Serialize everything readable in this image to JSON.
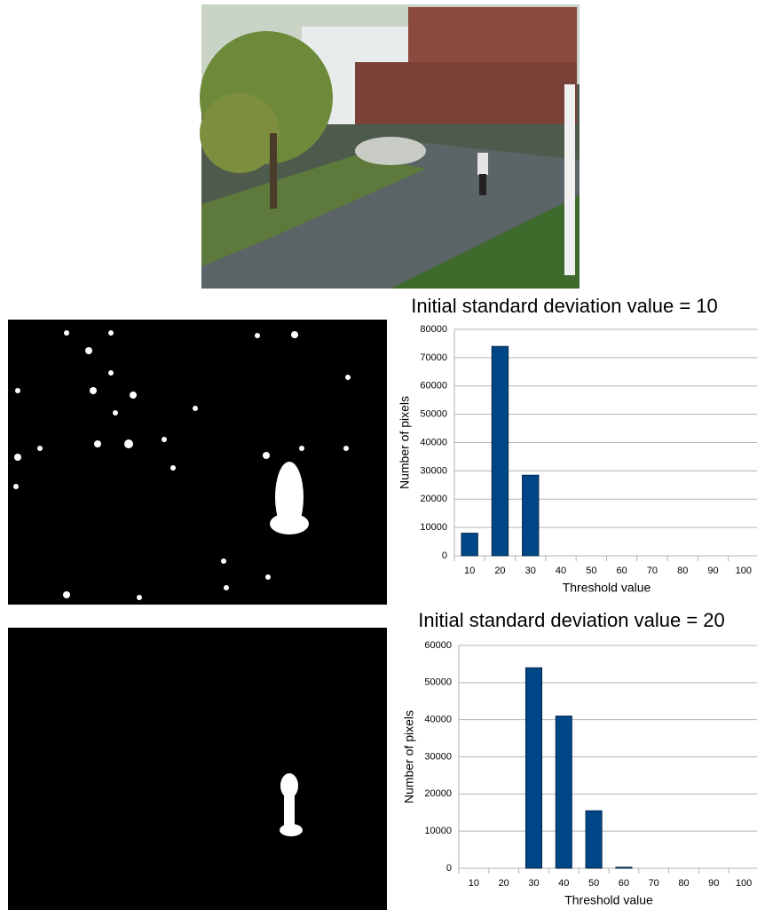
{
  "chart_data": [
    {
      "type": "bar",
      "title": "Initial standard deviation value = 10",
      "x_label": "Threshold value",
      "y_label": "Number of pixels",
      "categories": [
        "10",
        "20",
        "30",
        "40",
        "50",
        "60",
        "70",
        "80",
        "90",
        "100"
      ],
      "values": [
        8000,
        74000,
        28500,
        0,
        0,
        0,
        0,
        0,
        0,
        0
      ],
      "color": "#004586",
      "ylim": [
        0,
        80000
      ],
      "yticks": [
        0,
        10000,
        20000,
        30000,
        40000,
        50000,
        60000,
        70000,
        80000
      ],
      "grid": true
    },
    {
      "type": "bar",
      "title": "Initial standard deviation value = 20",
      "x_label": "Threshold value",
      "y_label": "Number of pixels",
      "categories": [
        "10",
        "20",
        "30",
        "40",
        "50",
        "60",
        "70",
        "80",
        "90",
        "100"
      ],
      "values": [
        0,
        0,
        54000,
        41000,
        15500,
        300,
        0,
        0,
        0,
        0
      ],
      "color": "#004586",
      "ylim": [
        0,
        60000
      ],
      "yticks": [
        0,
        10000,
        20000,
        30000,
        40000,
        50000,
        60000
      ],
      "grid": true
    }
  ]
}
